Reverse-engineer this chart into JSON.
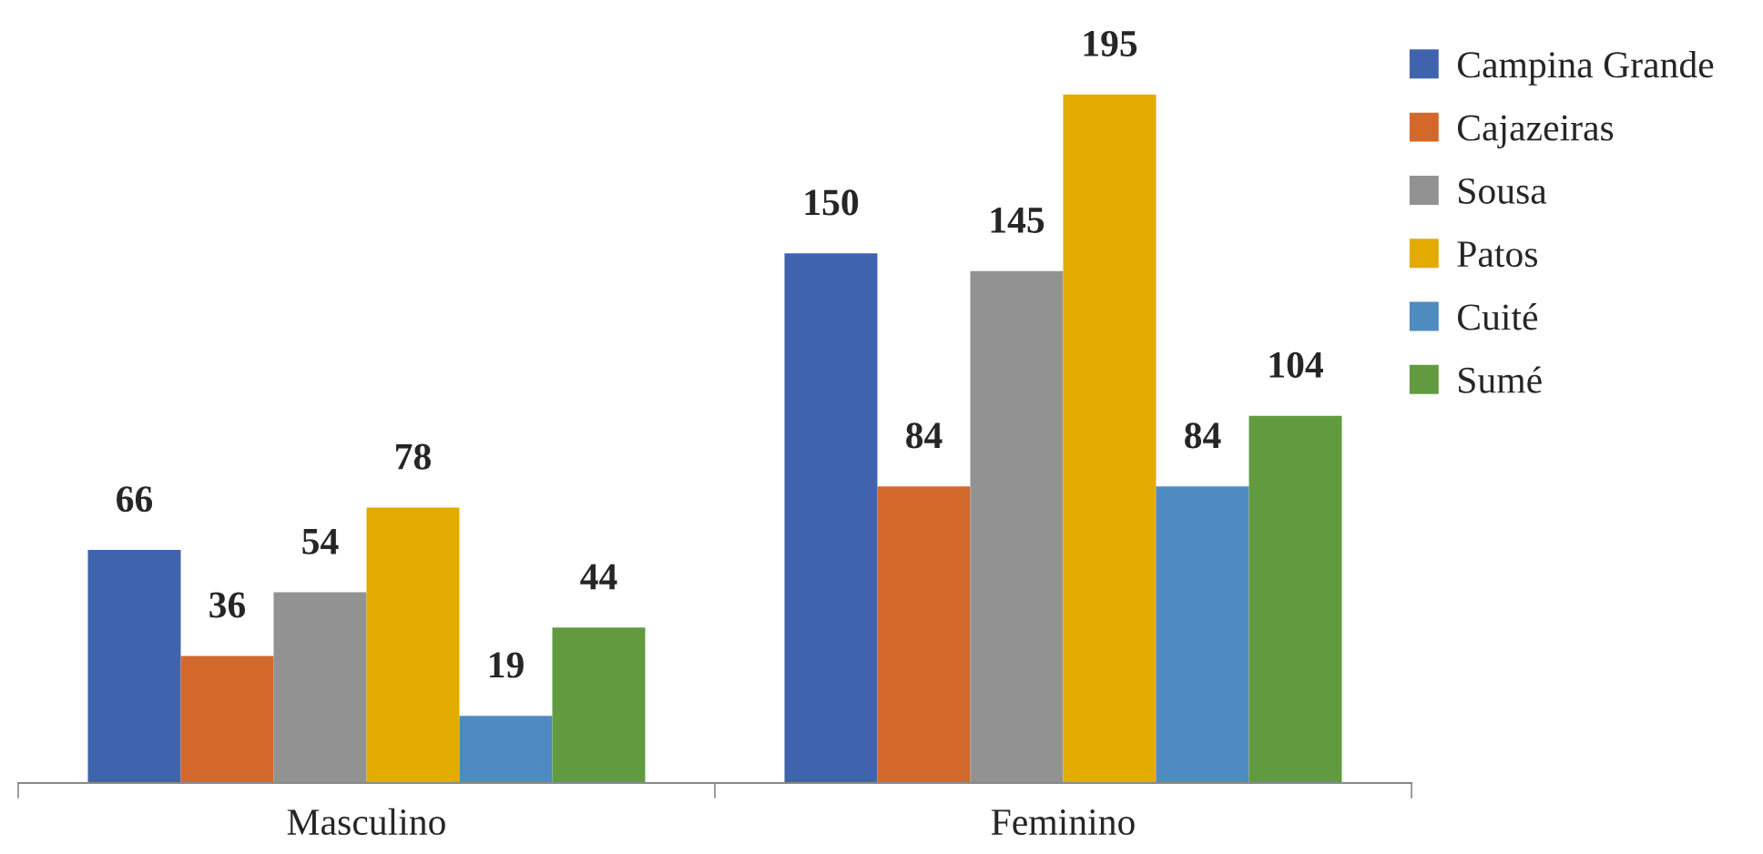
{
  "chart_data": {
    "type": "bar",
    "categories": [
      "Masculino",
      "Feminino"
    ],
    "series": [
      {
        "name": "Campina Grande",
        "color": "#3f64ad",
        "values": [
          66,
          150
        ]
      },
      {
        "name": "Cajazeiras",
        "color": "#d2692b",
        "values": [
          36,
          84
        ]
      },
      {
        "name": "Sousa",
        "color": "#929292",
        "values": [
          54,
          145
        ]
      },
      {
        "name": "Patos",
        "color": "#e3ab00",
        "values": [
          78,
          195
        ]
      },
      {
        "name": "Cuité",
        "color": "#4e8bc0",
        "values": [
          19,
          84
        ]
      },
      {
        "name": "Sumé",
        "color": "#629b3f",
        "values": [
          44,
          104
        ]
      }
    ],
    "data_labels": true,
    "legend": "right",
    "grid": false,
    "tick_labels": "x"
  }
}
